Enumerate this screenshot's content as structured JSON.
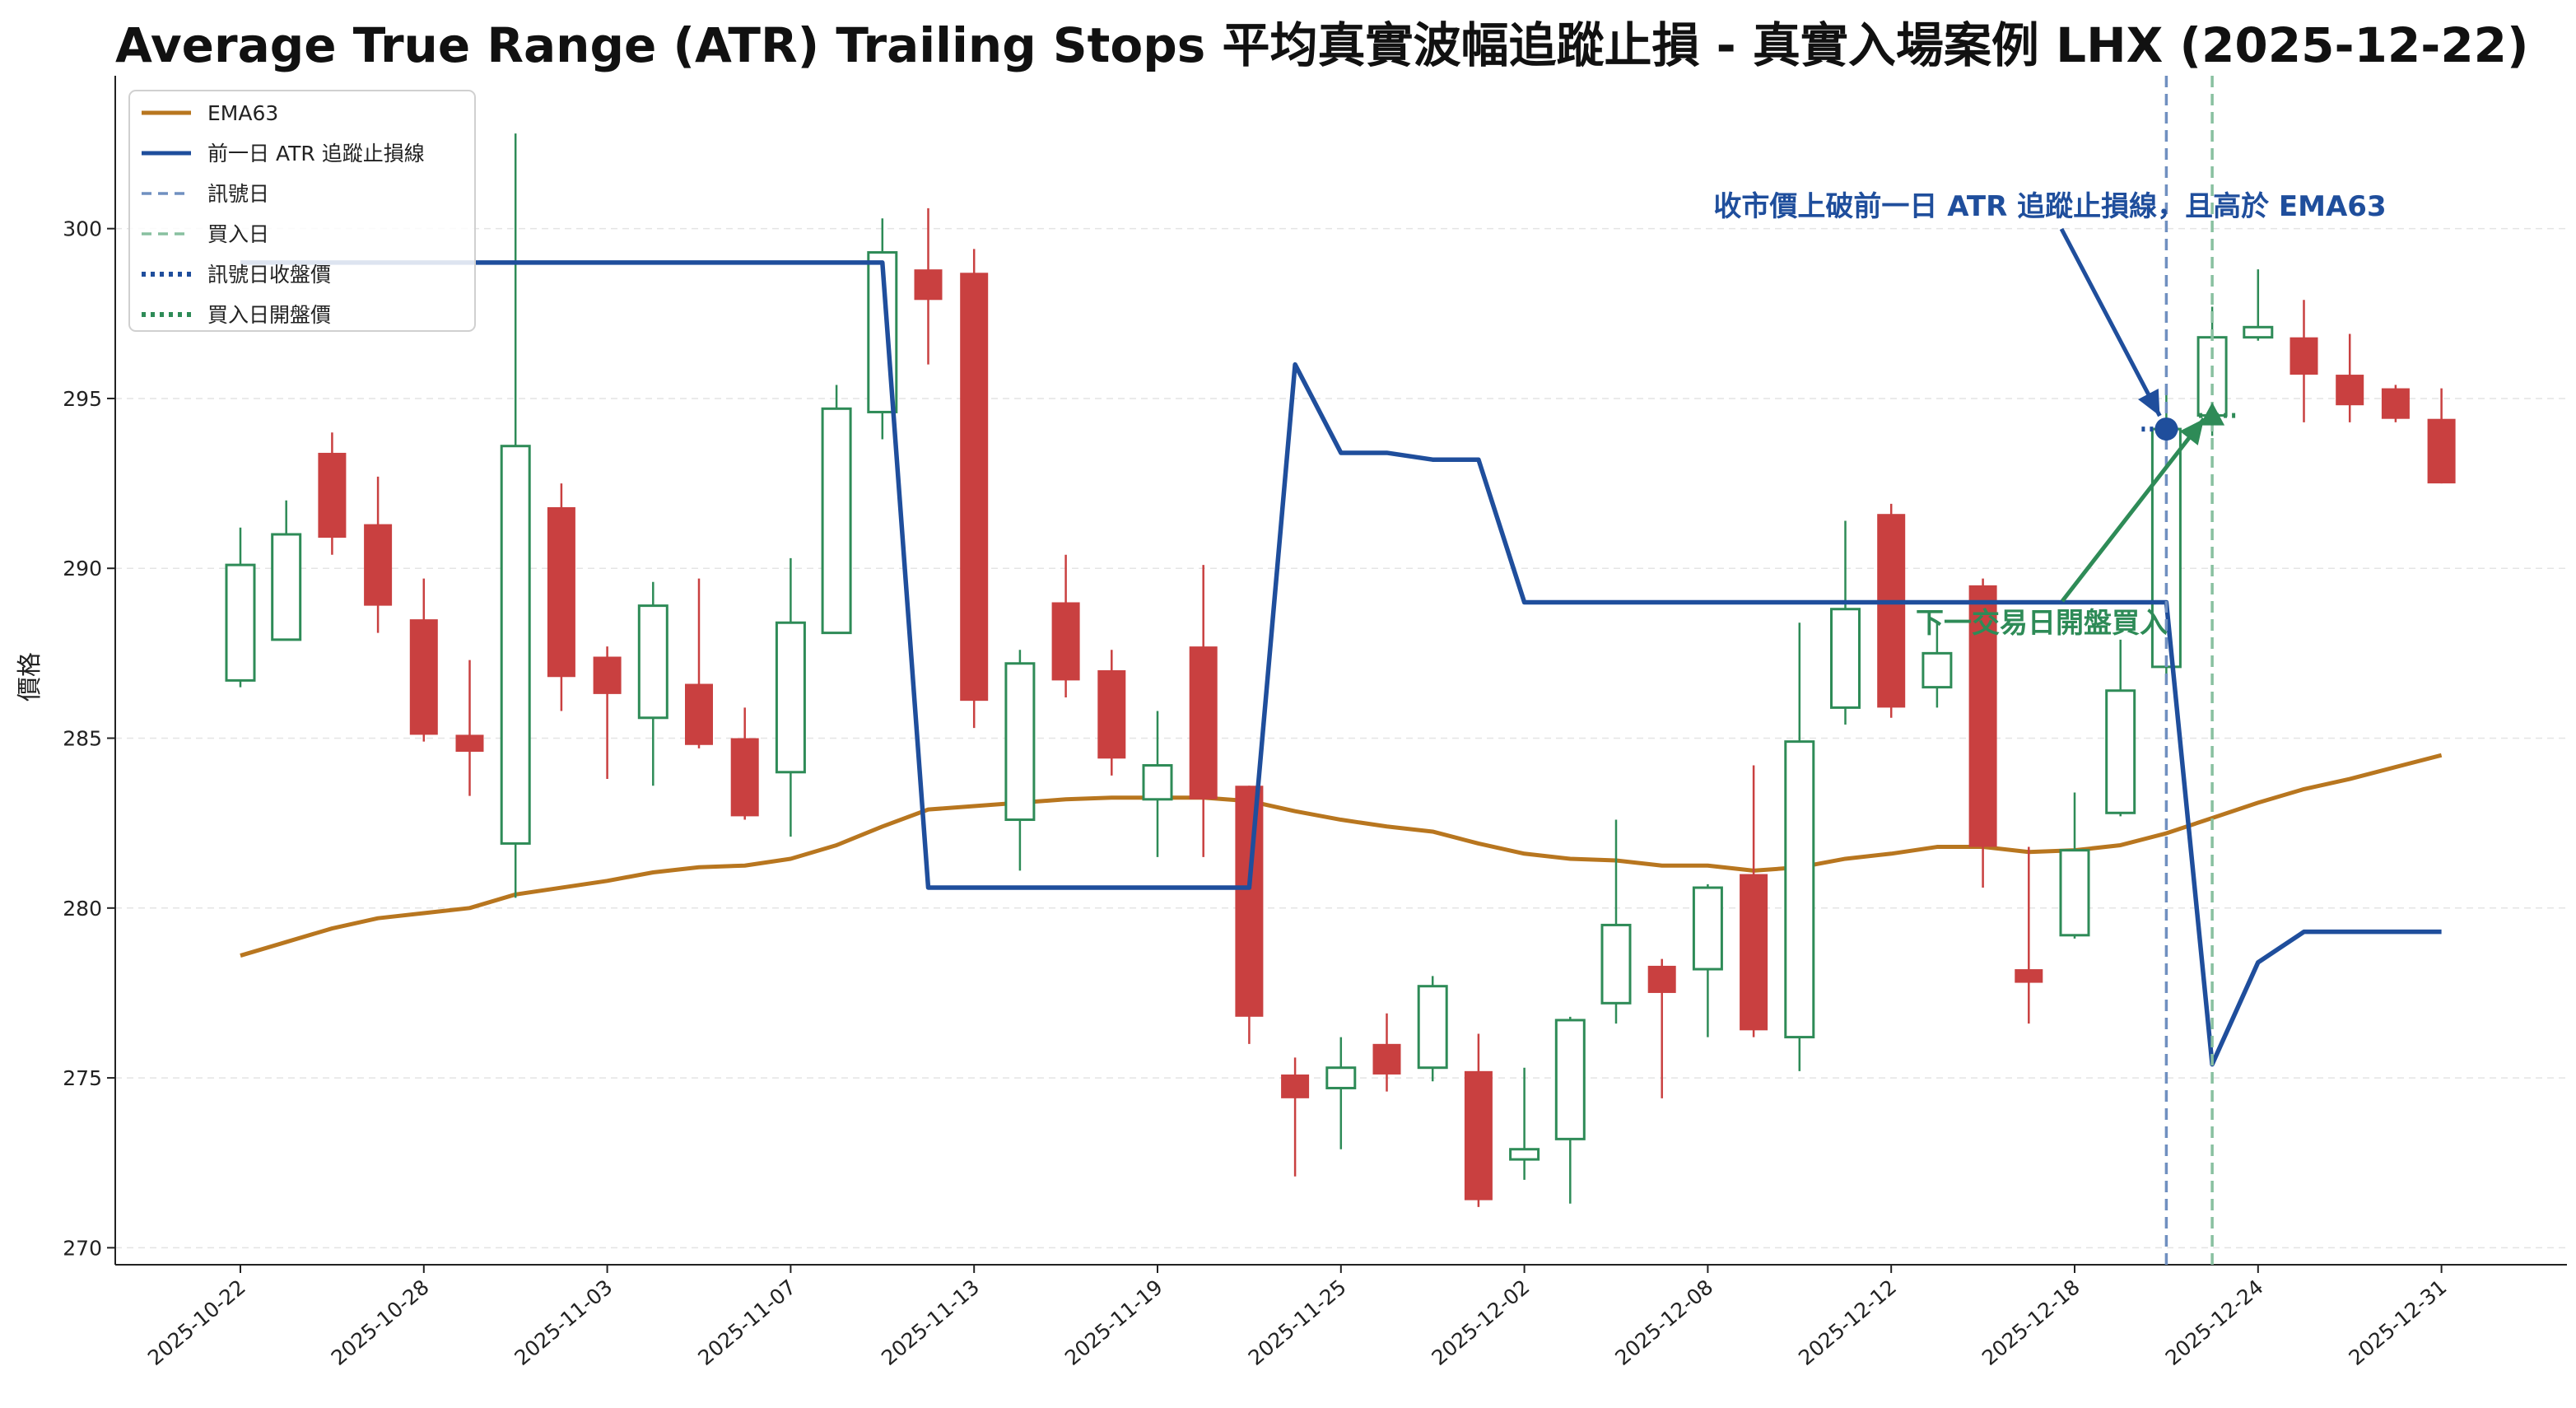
{
  "title": "Average True Range (ATR) Trailing Stops 平均真實波幅追蹤止損 - 真實入場案例 LHX (2025-12-22)",
  "chart_data": {
    "type": "candlestick",
    "ylabel": "價格",
    "ylim": [
      269.5,
      304.5
    ],
    "yticks": [
      270,
      275,
      280,
      285,
      290,
      295,
      300
    ],
    "grid": "horizontal dashed",
    "legend_position": "top-left",
    "colors": {
      "up": "#2e8b57",
      "down": "#c94040",
      "ema": "#b8761f",
      "stop": "#1f4e9c",
      "signal": "#7090c0",
      "buy": "#88c0a0",
      "annot_blue": "#1f4e9c",
      "annot_green": "#2e8b57"
    },
    "legend": [
      {
        "label": "EMA63",
        "style": "solid",
        "color": "#b8761f"
      },
      {
        "label": "前一日 ATR 追蹤止損線",
        "style": "solid",
        "color": "#1f4e9c"
      },
      {
        "label": "訊號日",
        "style": "dashed",
        "color": "#7090c0"
      },
      {
        "label": "買入日",
        "style": "dashed",
        "color": "#88c0a0"
      },
      {
        "label": "訊號日收盤價",
        "style": "dotted",
        "color": "#1f4e9c"
      },
      {
        "label": "買入日開盤價",
        "style": "dotted",
        "color": "#2e8b57"
      }
    ],
    "xtick_labels": [
      {
        "i": 0,
        "label": "2025-10-22"
      },
      {
        "i": 4,
        "label": "2025-10-28"
      },
      {
        "i": 8,
        "label": "2025-11-03"
      },
      {
        "i": 12,
        "label": "2025-11-07"
      },
      {
        "i": 16,
        "label": "2025-11-13"
      },
      {
        "i": 20,
        "label": "2025-11-19"
      },
      {
        "i": 24,
        "label": "2025-11-25"
      },
      {
        "i": 28,
        "label": "2025-12-02"
      },
      {
        "i": 32,
        "label": "2025-12-08"
      },
      {
        "i": 36,
        "label": "2025-12-12"
      },
      {
        "i": 40,
        "label": "2025-12-18"
      },
      {
        "i": 44,
        "label": "2025-12-24"
      },
      {
        "i": 48,
        "label": "2025-12-31"
      }
    ],
    "candles": [
      {
        "o": 286.7,
        "h": 291.2,
        "l": 286.5,
        "c": 290.1
      },
      {
        "o": 287.9,
        "h": 292.0,
        "l": 287.9,
        "c": 291.0
      },
      {
        "o": 293.4,
        "h": 294.0,
        "l": 290.4,
        "c": 290.9
      },
      {
        "o": 291.3,
        "h": 292.7,
        "l": 288.1,
        "c": 288.9
      },
      {
        "o": 288.5,
        "h": 289.7,
        "l": 284.9,
        "c": 285.1
      },
      {
        "o": 285.1,
        "h": 287.3,
        "l": 283.3,
        "c": 284.6
      },
      {
        "o": 281.9,
        "h": 302.8,
        "l": 280.3,
        "c": 293.6
      },
      {
        "o": 291.8,
        "h": 292.5,
        "l": 285.8,
        "c": 286.8
      },
      {
        "o": 287.4,
        "h": 287.7,
        "l": 283.8,
        "c": 286.3
      },
      {
        "o": 285.6,
        "h": 289.6,
        "l": 283.6,
        "c": 288.9
      },
      {
        "o": 286.6,
        "h": 289.7,
        "l": 284.7,
        "c": 284.8
      },
      {
        "o": 285.0,
        "h": 285.9,
        "l": 282.6,
        "c": 282.7
      },
      {
        "o": 284.0,
        "h": 290.3,
        "l": 282.1,
        "c": 288.4
      },
      {
        "o": 288.1,
        "h": 295.4,
        "l": 288.1,
        "c": 294.7
      },
      {
        "o": 294.6,
        "h": 300.3,
        "l": 293.8,
        "c": 299.3
      },
      {
        "o": 298.8,
        "h": 300.6,
        "l": 296.0,
        "c": 297.9
      },
      {
        "o": 298.7,
        "h": 299.4,
        "l": 285.3,
        "c": 286.1
      },
      {
        "o": 282.6,
        "h": 287.6,
        "l": 281.1,
        "c": 287.2
      },
      {
        "o": 289.0,
        "h": 290.4,
        "l": 286.2,
        "c": 286.7
      },
      {
        "o": 287.0,
        "h": 287.6,
        "l": 283.9,
        "c": 284.4
      },
      {
        "o": 283.2,
        "h": 285.8,
        "l": 281.5,
        "c": 284.2
      },
      {
        "o": 287.7,
        "h": 290.1,
        "l": 281.5,
        "c": 283.2
      },
      {
        "o": 283.6,
        "h": 283.6,
        "l": 276.0,
        "c": 276.8
      },
      {
        "o": 275.1,
        "h": 275.6,
        "l": 272.1,
        "c": 274.4
      },
      {
        "o": 274.7,
        "h": 276.2,
        "l": 272.9,
        "c": 275.3
      },
      {
        "o": 276.0,
        "h": 276.9,
        "l": 274.6,
        "c": 275.1
      },
      {
        "o": 275.3,
        "h": 278.0,
        "l": 274.9,
        "c": 277.7
      },
      {
        "o": 275.2,
        "h": 276.3,
        "l": 271.2,
        "c": 271.4
      },
      {
        "o": 272.6,
        "h": 275.3,
        "l": 272.0,
        "c": 272.9
      },
      {
        "o": 273.2,
        "h": 276.8,
        "l": 271.3,
        "c": 276.7
      },
      {
        "o": 277.2,
        "h": 282.6,
        "l": 276.6,
        "c": 279.5
      },
      {
        "o": 278.3,
        "h": 278.5,
        "l": 274.4,
        "c": 277.5
      },
      {
        "o": 278.2,
        "h": 280.7,
        "l": 276.2,
        "c": 280.6
      },
      {
        "o": 281.0,
        "h": 284.2,
        "l": 276.2,
        "c": 276.4
      },
      {
        "o": 276.2,
        "h": 288.4,
        "l": 275.2,
        "c": 284.9
      },
      {
        "o": 285.9,
        "h": 291.4,
        "l": 285.4,
        "c": 288.8
      },
      {
        "o": 291.6,
        "h": 291.9,
        "l": 285.6,
        "c": 285.9
      },
      {
        "o": 286.5,
        "h": 288.4,
        "l": 285.9,
        "c": 287.5
      },
      {
        "o": 289.5,
        "h": 289.7,
        "l": 280.6,
        "c": 281.8
      },
      {
        "o": 278.2,
        "h": 281.8,
        "l": 276.6,
        "c": 277.8
      },
      {
        "o": 279.2,
        "h": 283.4,
        "l": 279.1,
        "c": 281.7
      },
      {
        "o": 282.8,
        "h": 287.9,
        "l": 282.7,
        "c": 286.4
      },
      {
        "o": 287.1,
        "h": 295.1,
        "l": 286.7,
        "c": 294.1
      },
      {
        "o": 294.5,
        "h": 297.7,
        "l": 293.9,
        "c": 296.8
      },
      {
        "o": 296.8,
        "h": 298.8,
        "l": 296.7,
        "c": 297.1
      },
      {
        "o": 296.8,
        "h": 297.9,
        "l": 294.3,
        "c": 295.7
      },
      {
        "o": 295.7,
        "h": 296.9,
        "l": 294.3,
        "c": 294.8
      },
      {
        "o": 295.3,
        "h": 295.4,
        "l": 294.3,
        "c": 294.4
      },
      {
        "o": 294.4,
        "h": 295.3,
        "l": 292.5,
        "c": 292.5
      }
    ],
    "ema63": [
      278.6,
      279.0,
      279.4,
      279.7,
      279.85,
      280.0,
      280.4,
      280.6,
      280.8,
      281.05,
      281.2,
      281.25,
      281.45,
      281.85,
      282.4,
      282.9,
      283.0,
      283.1,
      283.2,
      283.25,
      283.25,
      283.25,
      283.15,
      282.85,
      282.6,
      282.4,
      282.25,
      281.9,
      281.6,
      281.45,
      281.4,
      281.25,
      281.25,
      281.1,
      281.2,
      281.45,
      281.6,
      281.8,
      281.8,
      281.65,
      281.7,
      281.85,
      282.2,
      282.65,
      283.1,
      283.5,
      283.8,
      284.15,
      284.5
    ],
    "stop_line": [
      299.0,
      299.0,
      299.0,
      299.0,
      299.0,
      299.0,
      299.0,
      299.0,
      299.0,
      299.0,
      299.0,
      299.0,
      299.0,
      299.0,
      299.0,
      280.6,
      280.6,
      280.6,
      280.6,
      280.6,
      280.6,
      280.6,
      280.6,
      296.0,
      293.4,
      293.4,
      293.2,
      293.2,
      289.0,
      289.0,
      289.0,
      289.0,
      289.0,
      289.0,
      289.0,
      289.0,
      289.0,
      289.0,
      289.0,
      289.0,
      289.0,
      289.0,
      289.0,
      275.4,
      278.4,
      279.3,
      279.3,
      279.3,
      279.3
    ],
    "signal_index": 42,
    "buy_index": 43,
    "signal_close": 294.1,
    "buy_open": 294.5,
    "annotations": {
      "signal": "收市價上破前一日 ATR 追蹤止損線，且高於 EMA63",
      "buy": "下一交易日開盤買入"
    }
  }
}
